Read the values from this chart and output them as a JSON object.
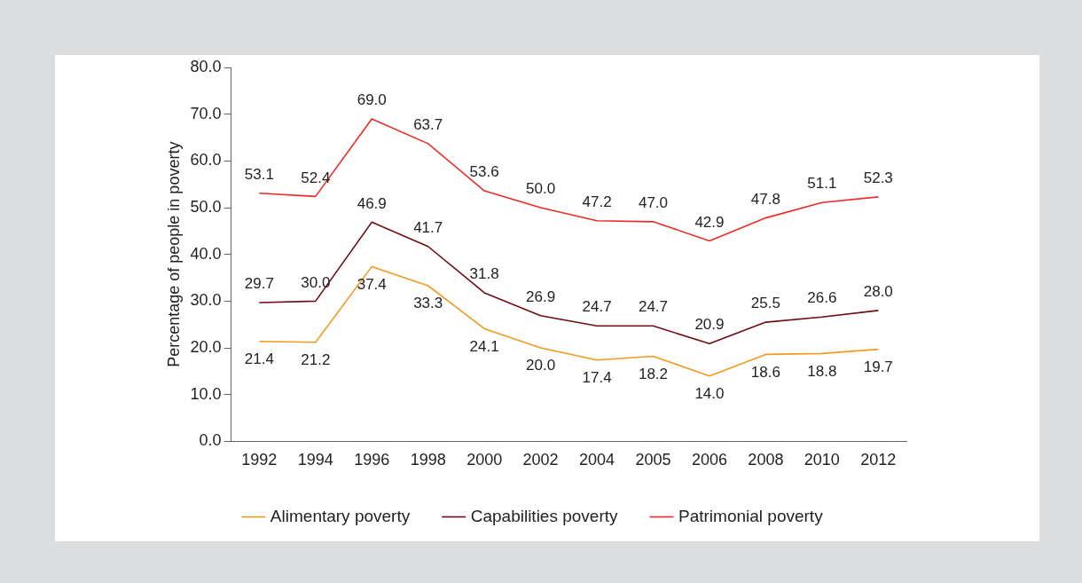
{
  "chart_data": {
    "type": "line",
    "ylabel": "Percentage of people in poverty",
    "categories": [
      "1992",
      "1994",
      "1996",
      "1998",
      "2000",
      "2002",
      "2004",
      "2005",
      "2006",
      "2008",
      "2010",
      "2012"
    ],
    "series": [
      {
        "name": "Alimentary poverty",
        "color": "#f39a1e",
        "values": [
          21.4,
          21.2,
          37.4,
          33.3,
          24.1,
          20.0,
          17.4,
          18.2,
          14.0,
          18.6,
          18.8,
          19.7
        ],
        "value_labels": [
          "21.4",
          "21.2",
          "37.4",
          "33.3",
          "24.1",
          "20.0",
          "17.4",
          "18.2",
          "14.0",
          "18.6",
          "18.8",
          "19.7"
        ]
      },
      {
        "name": "Capabilities poverty",
        "color": "#6e0d12",
        "values": [
          29.7,
          30.0,
          46.9,
          41.7,
          31.8,
          26.9,
          24.7,
          24.7,
          20.9,
          25.5,
          26.6,
          28.0
        ],
        "value_labels": [
          "29.7",
          "30.0",
          "46.9",
          "41.7",
          "31.8",
          "26.9",
          "24.7",
          "24.7",
          "20.9",
          "25.5",
          "26.6",
          "28.0"
        ]
      },
      {
        "name": "Patrimonial poverty",
        "color": "#ec2b24",
        "values": [
          53.1,
          52.4,
          69.0,
          63.7,
          53.6,
          50.0,
          47.2,
          47.0,
          42.9,
          47.8,
          51.1,
          52.3
        ],
        "value_labels": [
          "53.1",
          "52.4",
          "69.0",
          "63.7",
          "53.6",
          "50.0",
          "47.2",
          "47.0",
          "42.9",
          "47.8",
          "51.1",
          "52.3"
        ]
      }
    ],
    "ylim": [
      0,
      80
    ],
    "yticks": [
      {
        "value": 0,
        "label": "0.0"
      },
      {
        "value": 10,
        "label": "10.0"
      },
      {
        "value": 20,
        "label": "20.0"
      },
      {
        "value": 30,
        "label": "30.0"
      },
      {
        "value": 40,
        "label": "40.0"
      },
      {
        "value": 50,
        "label": "50.0"
      },
      {
        "value": 60,
        "label": "60.0"
      },
      {
        "value": 70,
        "label": "70.0"
      },
      {
        "value": 80,
        "label": "80.0"
      }
    ],
    "grid": false,
    "legend": "bottom",
    "marker": "none",
    "line_style": "solid"
  }
}
